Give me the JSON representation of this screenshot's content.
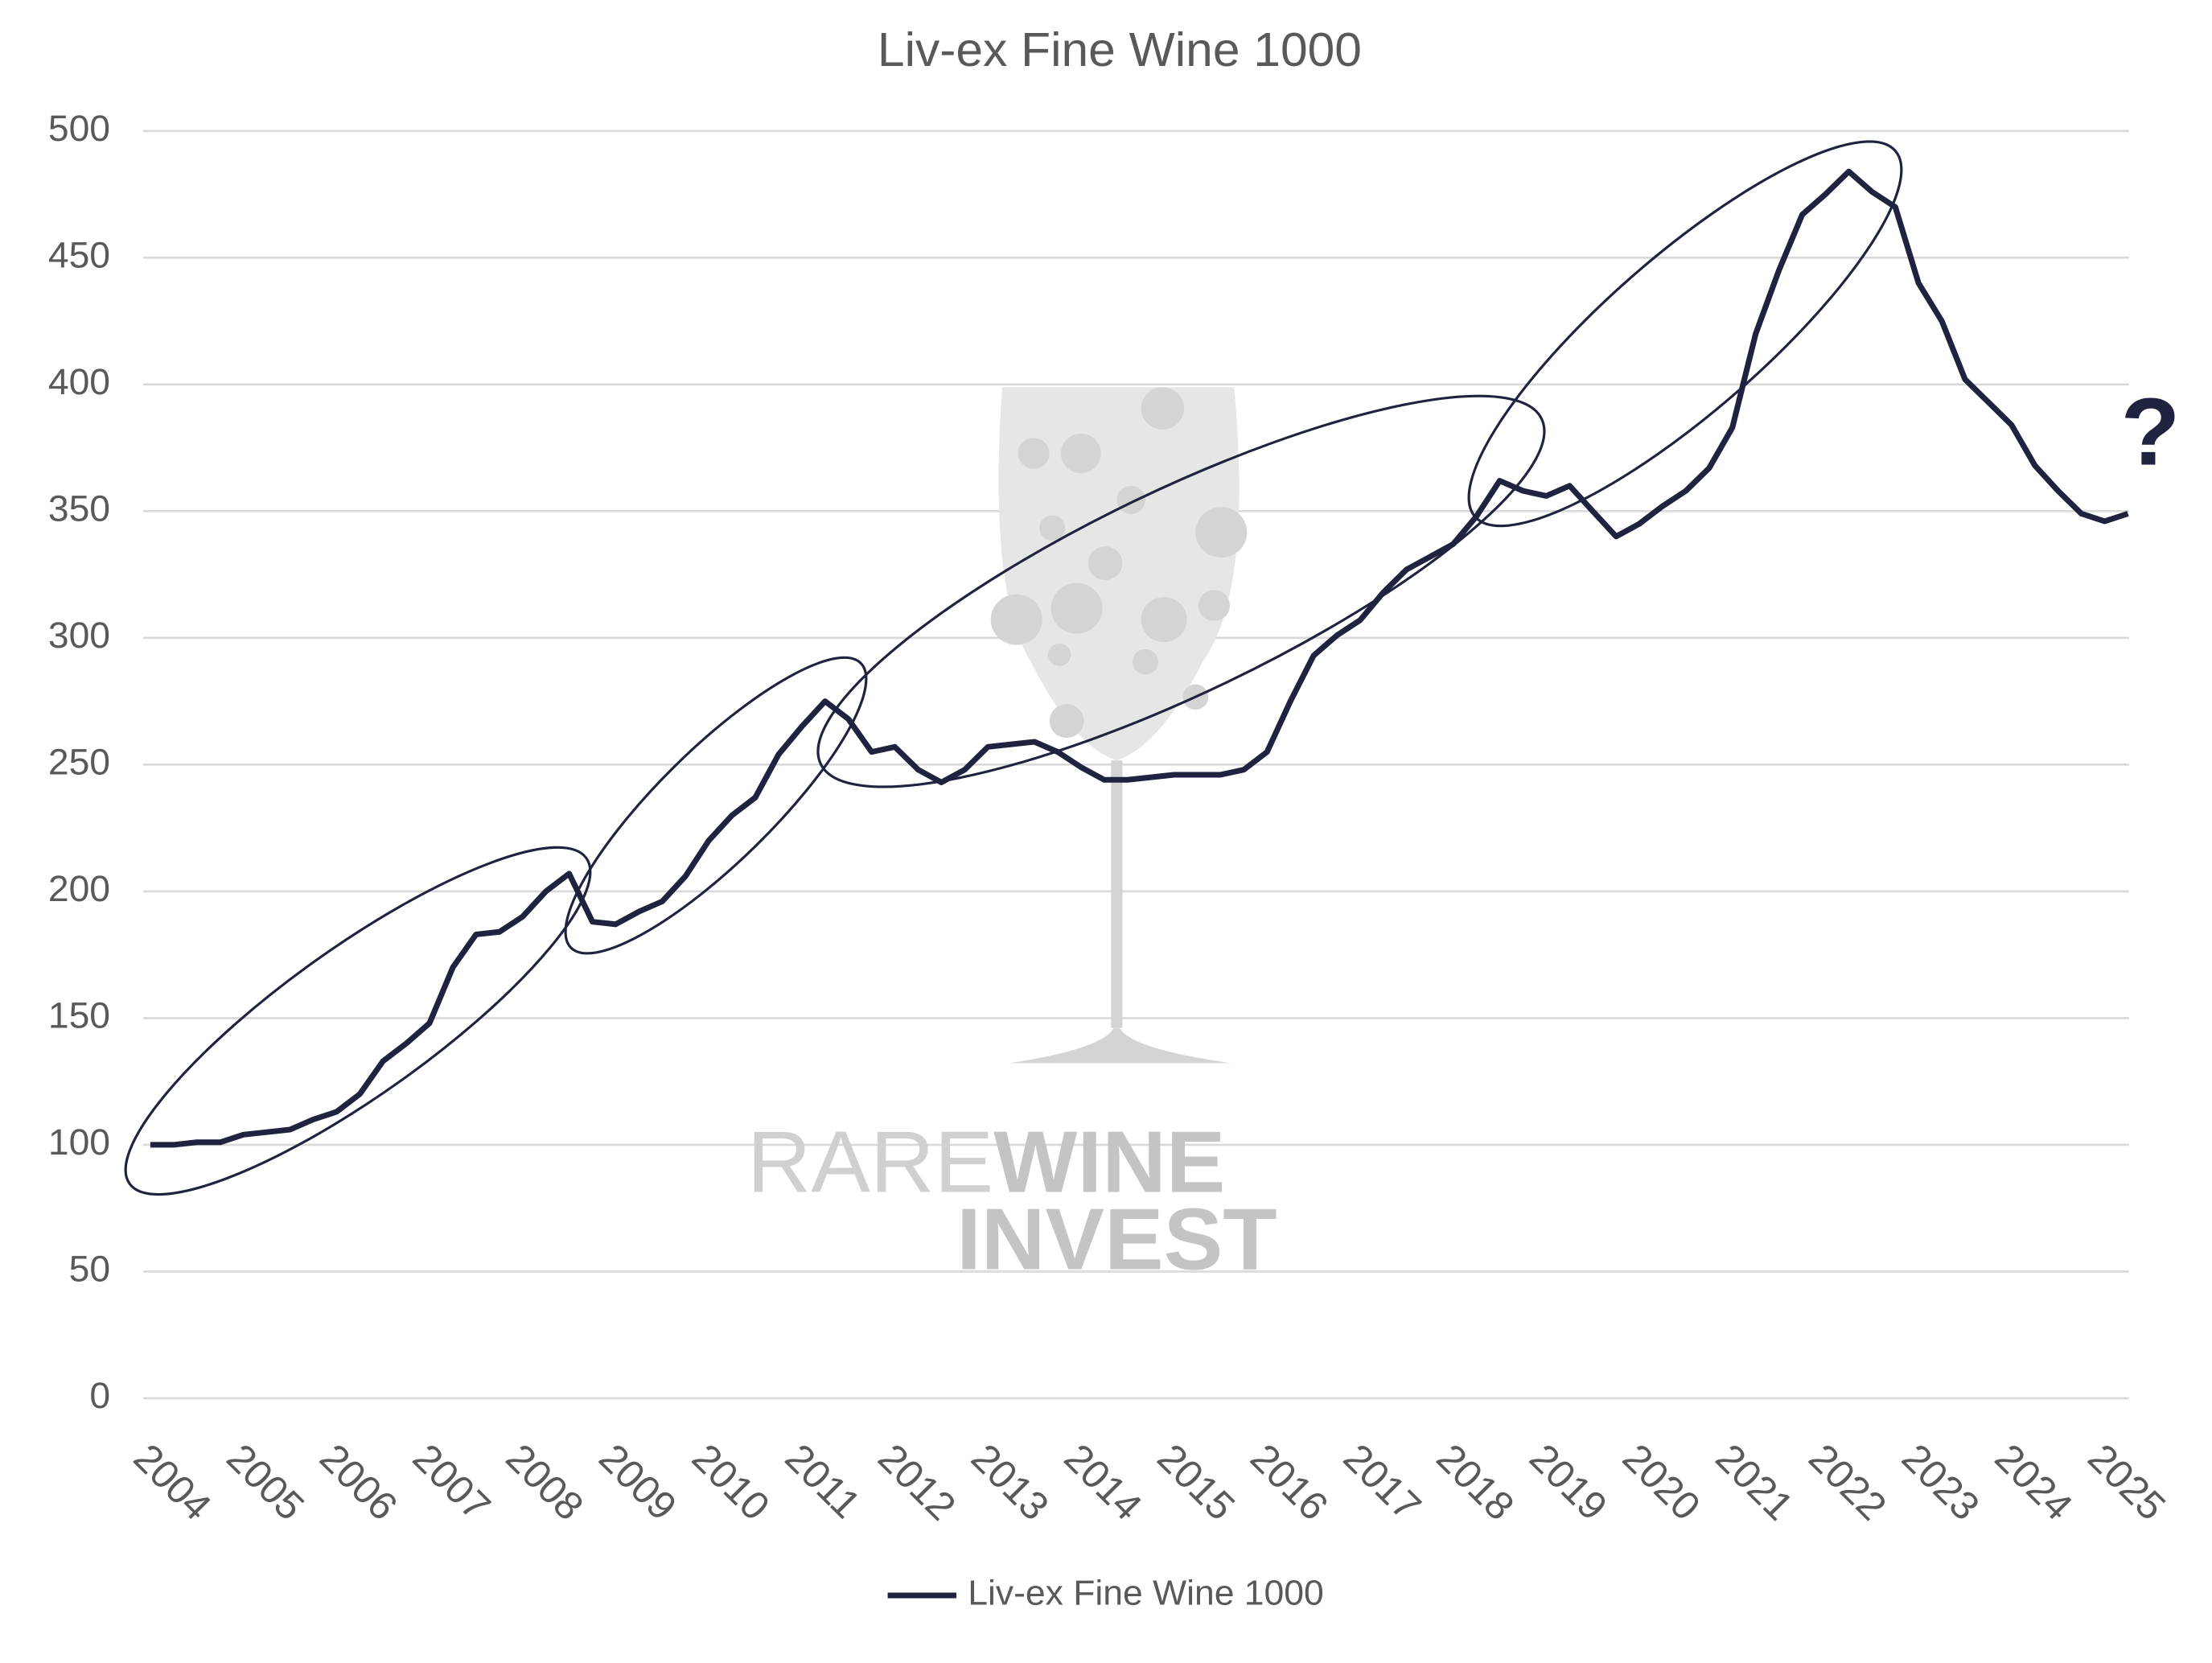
{
  "chart_data": {
    "type": "line",
    "title": "Liv-ex Fine Wine 1000",
    "categories": [
      "2004",
      null,
      null,
      null,
      "2005",
      null,
      null,
      null,
      "2006",
      null,
      null,
      null,
      "2007",
      null,
      null,
      null,
      "2008",
      null,
      null,
      null,
      "2009",
      null,
      null,
      null,
      "2010",
      null,
      null,
      null,
      "2011",
      null,
      null,
      null,
      "2012",
      null,
      null,
      null,
      "2013",
      null,
      null,
      null,
      "2014",
      null,
      null,
      null,
      "2015",
      null,
      null,
      null,
      "2016",
      null,
      null,
      null,
      "2017",
      null,
      null,
      null,
      "2018",
      null,
      null,
      null,
      "2019",
      null,
      null,
      null,
      "2020",
      null,
      null,
      null,
      "2021",
      null,
      null,
      null,
      "2022",
      null,
      null,
      null,
      "2023",
      null,
      null,
      null,
      "2024",
      null,
      null,
      null,
      "2025",
      null
    ],
    "series": [
      {
        "name": "Liv-ex Fine Wine 1000",
        "color": "#1f2340",
        "values": [
          100,
          100,
          101,
          101,
          104,
          105,
          106,
          110,
          113,
          120,
          133,
          140,
          148,
          170,
          183,
          184,
          190,
          200,
          207,
          188,
          187,
          192,
          196,
          206,
          220,
          230,
          237,
          254,
          265,
          275,
          268,
          255,
          257,
          248,
          243,
          248,
          257,
          258,
          259,
          255,
          249,
          244,
          244,
          245,
          246,
          246,
          246,
          248,
          255,
          275,
          293,
          301,
          307,
          318,
          327,
          332,
          337,
          348,
          362,
          358,
          356,
          360,
          350,
          340,
          345,
          352,
          358,
          367,
          383,
          420,
          445,
          467,
          475,
          484,
          476,
          470,
          440,
          425,
          402,
          393,
          384,
          368,
          358,
          349,
          346,
          349
        ]
      }
    ],
    "ylim": [
      0,
      500
    ],
    "yticks": [
      0,
      50,
      100,
      150,
      200,
      250,
      300,
      350,
      400,
      450,
      500
    ],
    "grid": true,
    "legend": "bottom",
    "annotations": [
      "?"
    ],
    "watermark": [
      "RARE",
      "WINE",
      "INVEST"
    ]
  }
}
